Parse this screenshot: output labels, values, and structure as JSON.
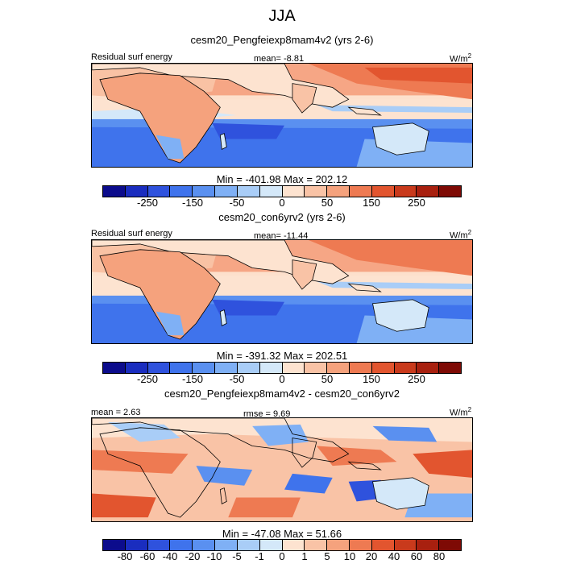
{
  "figure": {
    "title": "JJA"
  },
  "panels": [
    {
      "title": "cesm20_Pengfeiexp8mam4v2 (yrs 2-6)",
      "left_label": "Residual surf energy",
      "center_label": "mean=  -8.81",
      "units_base": "W/m",
      "units_exp": "2",
      "minmax": "Min = -401.98 Max = 202.12",
      "colorbar_ticks": [
        "-250",
        "-150",
        "-50",
        "0",
        "50",
        "150",
        "250"
      ]
    },
    {
      "title": "cesm20_con6yrv2 (yrs 2-6)",
      "left_label": "Residual surf energy",
      "center_label": "mean= -11.44",
      "units_base": "W/m",
      "units_exp": "2",
      "minmax": "Min = -391.32 Max = 202.51",
      "colorbar_ticks": [
        "-250",
        "-150",
        "-50",
        "0",
        "50",
        "150",
        "250"
      ]
    },
    {
      "title": "cesm20_Pengfeiexp8mam4v2 - cesm20_con6yrv2",
      "left_label": "mean =   2.63",
      "center_label": "rmse =   9.69",
      "units_base": "W/m",
      "units_exp": "2",
      "minmax": "Min = -47.08 Max =  51.66",
      "colorbar_ticks": [
        "-80",
        "-60",
        "-40",
        "-20",
        "-10",
        "-5",
        "-1",
        "0",
        "1",
        "5",
        "10",
        "20",
        "40",
        "60",
        "80"
      ]
    }
  ],
  "colors": {
    "colorbar": [
      "#0c0c8c",
      "#1a2dbf",
      "#2f52dd",
      "#3f73ec",
      "#5a90f0",
      "#7fb0f5",
      "#a9cdf7",
      "#d4e8f9",
      "#fde3d0",
      "#f9c3a6",
      "#f5a27d",
      "#ee7a52",
      "#e2552f",
      "#c93a1c",
      "#a8200f",
      "#7e0a05"
    ],
    "land_line": "#000000"
  }
}
